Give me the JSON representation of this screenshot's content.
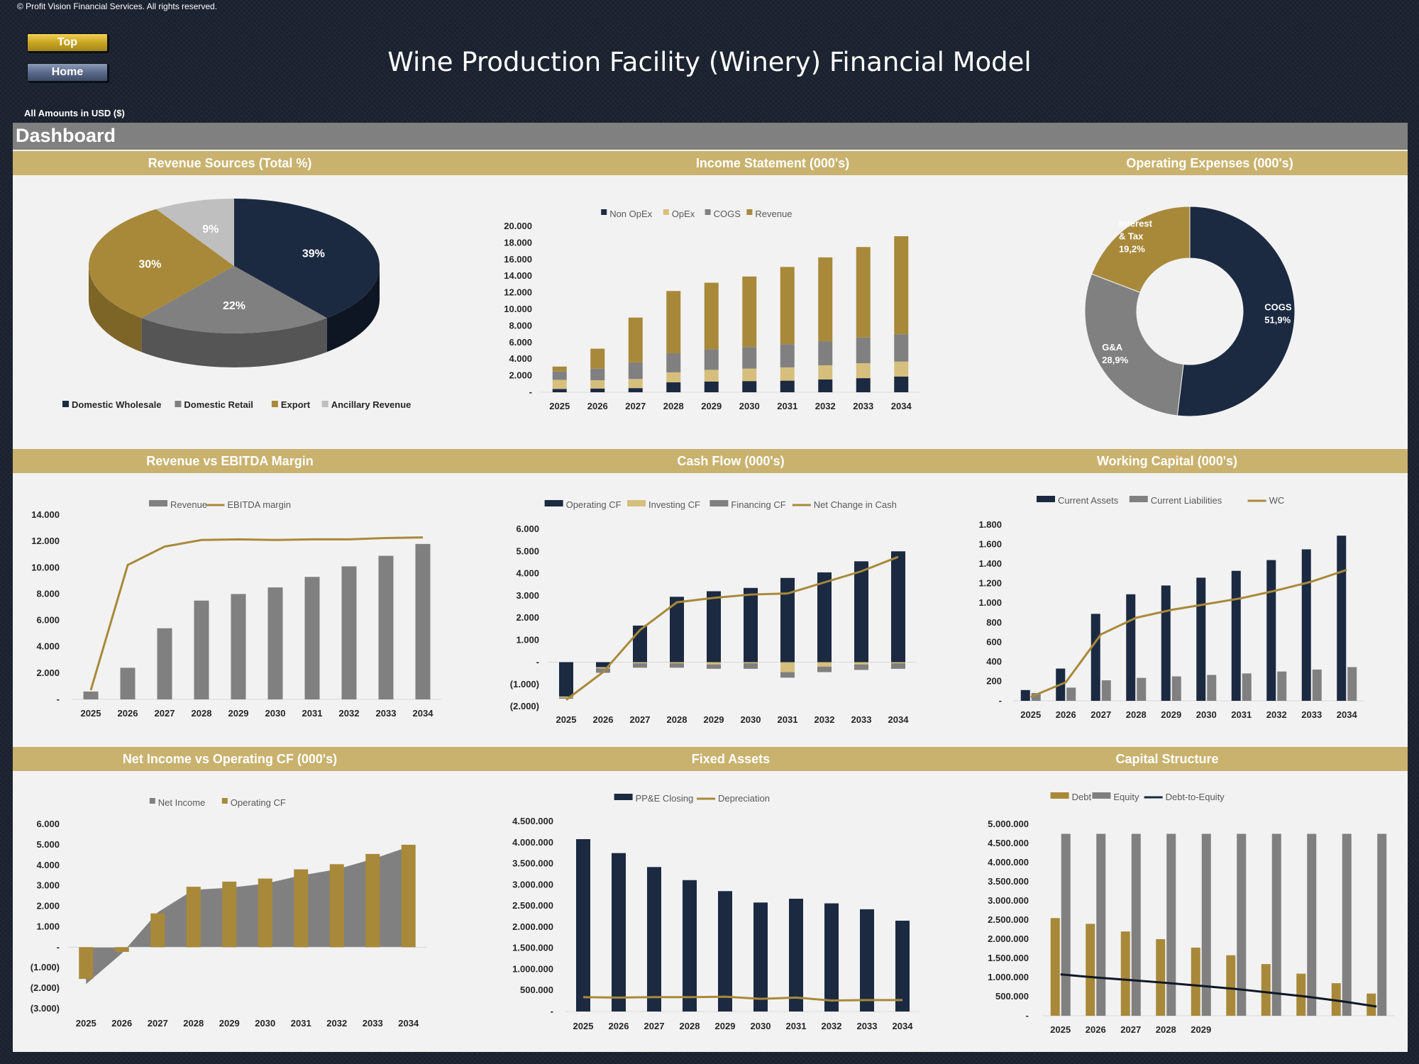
{
  "header": {
    "copyright": "© Profit Vision Financial Services. All rights reserved.",
    "top_button": "Top",
    "home_button": "Home",
    "title": "Wine Production Facility (Winery) Financial Model",
    "amounts_note": "All Amounts in  USD ($)",
    "dashboard_label": "Dashboard"
  },
  "colors": {
    "navy": "#1b2a41",
    "gold": "#a8893a",
    "light_gold": "#d6bf7d",
    "grey": "#808080",
    "light_grey": "#bfbfbf",
    "band": "#c9b26e"
  },
  "chart_data": [
    {
      "id": "revenue_sources",
      "type": "pie",
      "title": "Revenue Sources (Total %)",
      "categories": [
        "Domestic Wholesale",
        "Domestic Retail",
        "Export",
        "Ancillary Revenue"
      ],
      "values": [
        39,
        22,
        30,
        9
      ],
      "data_labels": [
        "39%",
        "22%",
        "30%",
        "9%"
      ],
      "legend": "bottom"
    },
    {
      "id": "income_statement",
      "type": "bar",
      "stacked": true,
      "title": "Income Statement (000's)",
      "categories": [
        "2025",
        "2026",
        "2027",
        "2028",
        "2029",
        "2030",
        "2031",
        "2032",
        "2033",
        "2034"
      ],
      "series": [
        {
          "name": "Non OpEx",
          "values": [
            400,
            450,
            500,
            1200,
            1300,
            1350,
            1400,
            1550,
            1700,
            1900
          ]
        },
        {
          "name": "OpEx",
          "values": [
            1100,
            1000,
            1100,
            1200,
            1400,
            1500,
            1600,
            1700,
            1800,
            1800
          ]
        },
        {
          "name": "COGS",
          "values": [
            1000,
            1400,
            2000,
            2300,
            2500,
            2600,
            2800,
            2900,
            3100,
            3300
          ]
        },
        {
          "name": "Revenue",
          "values": [
            600,
            2400,
            5400,
            7500,
            8000,
            8500,
            9300,
            10100,
            10900,
            11800
          ]
        }
      ],
      "yticks": [
        "20.000",
        "18.000",
        "16.000",
        "14.000",
        "12.000",
        "10.000",
        "8.000",
        "6.000",
        "4.000",
        "2.000",
        "-"
      ],
      "ylim": [
        0,
        20000
      ],
      "legend": "top"
    },
    {
      "id": "operating_expenses",
      "type": "pie",
      "donut": true,
      "title": "Operating Expenses (000's)",
      "categories": [
        "COGS",
        "G&A",
        "Interest & Tax"
      ],
      "values": [
        51.9,
        28.9,
        19.2
      ],
      "data_labels": [
        "COGS\n51,9%",
        "G&A\n28,9%",
        "Interest\n& Tax\n19,2%"
      ]
    },
    {
      "id": "revenue_vs_ebitda",
      "type": "bar",
      "title": "Revenue vs EBITDA Margin",
      "categories": [
        "2025",
        "2026",
        "2027",
        "2028",
        "2029",
        "2030",
        "2031",
        "2032",
        "2033",
        "2034"
      ],
      "series": [
        {
          "name": "Revenue",
          "values": [
            600,
            2400,
            5400,
            7500,
            8000,
            8500,
            9300,
            10100,
            10900,
            11800
          ]
        },
        {
          "name": "EBITDA margin",
          "type": "line",
          "values": [
            700,
            10200,
            11600,
            12100,
            12150,
            12100,
            12150,
            12150,
            12250,
            12300
          ]
        }
      ],
      "yticks": [
        "14.000",
        "12.000",
        "10.000",
        "8.000",
        "6.000",
        "4.000",
        "2.000",
        "-"
      ],
      "ylim": [
        0,
        14000
      ],
      "legend": "top"
    },
    {
      "id": "cash_flow",
      "type": "bar",
      "stacked": true,
      "title": "Cash Flow (000's)",
      "categories": [
        "2025",
        "2026",
        "2027",
        "2028",
        "2029",
        "2030",
        "2031",
        "2032",
        "2033",
        "2034"
      ],
      "series": [
        {
          "name": "Operating CF",
          "values": [
            -1550,
            -230,
            1650,
            2950,
            3200,
            3350,
            3800,
            4050,
            4550,
            5000
          ]
        },
        {
          "name": "Investing CF",
          "values": [
            -50,
            -50,
            -50,
            -50,
            -100,
            -50,
            -450,
            -200,
            -100,
            -50
          ]
        },
        {
          "name": "Financing CF",
          "values": [
            -50,
            -200,
            -200,
            -200,
            -200,
            -250,
            -250,
            -250,
            -250,
            -250
          ]
        },
        {
          "name": "Net Change in Cash",
          "type": "line",
          "values": [
            -1700,
            -450,
            1450,
            2700,
            2900,
            3050,
            3100,
            3600,
            4100,
            4750
          ]
        }
      ],
      "yticks": [
        "6.000",
        "5.000",
        "4.000",
        "3.000",
        "2.000",
        "1.000",
        "-",
        "(1.000)",
        "(2.000)"
      ],
      "ylim": [
        -2000,
        6000
      ],
      "legend": "top"
    },
    {
      "id": "working_capital",
      "type": "bar",
      "title": "Working Capital (000's)",
      "categories": [
        "2025",
        "2026",
        "2027",
        "2028",
        "2029",
        "2030",
        "2031",
        "2032",
        "2033",
        "2034"
      ],
      "series": [
        {
          "name": "Current Assets",
          "values": [
            110,
            330,
            890,
            1090,
            1180,
            1260,
            1330,
            1440,
            1550,
            1690
          ]
        },
        {
          "name": "Current Liabilities",
          "values": [
            80,
            135,
            210,
            235,
            250,
            265,
            280,
            300,
            320,
            345
          ]
        },
        {
          "name": "WC",
          "type": "line",
          "values": [
            40,
            190,
            680,
            850,
            930,
            990,
            1050,
            1130,
            1220,
            1340
          ]
        }
      ],
      "yticks": [
        "1.800",
        "1.600",
        "1.400",
        "1.200",
        "1.000",
        "800",
        "600",
        "400",
        "200",
        "-"
      ],
      "ylim": [
        0,
        1800
      ],
      "legend": "top"
    },
    {
      "id": "net_income_vs_ocf",
      "type": "bar",
      "title": "Net Income vs Operating CF (000's)",
      "categories": [
        "2025",
        "2026",
        "2027",
        "2028",
        "2029",
        "2030",
        "2031",
        "2032",
        "2033",
        "2034"
      ],
      "series": [
        {
          "name": "Net Income",
          "type": "area",
          "values": [
            -1800,
            -300,
            1700,
            2800,
            2900,
            3100,
            3500,
            3800,
            4300,
            4900
          ]
        },
        {
          "name": "Operating CF",
          "values": [
            -1550,
            -230,
            1650,
            2950,
            3200,
            3350,
            3800,
            4050,
            4550,
            5000
          ]
        }
      ],
      "yticks": [
        "6.000",
        "5.000",
        "4.000",
        "3.000",
        "2.000",
        "1.000",
        "-",
        "(1.000)",
        "(2.000)",
        "(3.000)"
      ],
      "ylim": [
        -3000,
        6000
      ],
      "legend": "top"
    },
    {
      "id": "fixed_assets",
      "type": "bar",
      "title": "Fixed Assets",
      "categories": [
        "2025",
        "2026",
        "2027",
        "2028",
        "2029",
        "2030",
        "2031",
        "2032",
        "2033",
        "2034"
      ],
      "series": [
        {
          "name": "PP&E Closing",
          "values": [
            4080000,
            3750000,
            3420000,
            3110000,
            2850000,
            2580000,
            2670000,
            2560000,
            2420000,
            2150000
          ]
        },
        {
          "name": "Depreciation",
          "type": "line",
          "values": [
            340000,
            330000,
            340000,
            340000,
            350000,
            300000,
            330000,
            260000,
            270000,
            270000
          ]
        }
      ],
      "yticks": [
        "4.500.000",
        "4.000.000",
        "3.500.000",
        "3.000.000",
        "2.500.000",
        "2.000.000",
        "1.500.000",
        "1.000.000",
        "500.000",
        "-"
      ],
      "ylim": [
        0,
        4500000
      ],
      "legend": "top"
    },
    {
      "id": "capital_structure",
      "type": "bar",
      "title": "Capital Structure",
      "categories": [
        "2025",
        "2026",
        "2027",
        "2028",
        "2029",
        "",
        "",
        "",
        "",
        ""
      ],
      "series": [
        {
          "name": "Debt",
          "values": [
            2550000,
            2400000,
            2200000,
            2000000,
            1780000,
            1580000,
            1350000,
            1100000,
            850000,
            580000
          ]
        },
        {
          "name": "Equity",
          "values": [
            4750000,
            4750000,
            4750000,
            4750000,
            4750000,
            4750000,
            4750000,
            4750000,
            4750000,
            4750000
          ]
        },
        {
          "name": "Debt-to-Equity",
          "type": "line",
          "values": [
            1080000,
            1000000,
            930000,
            860000,
            780000,
            700000,
            600000,
            500000,
            380000,
            240000
          ]
        }
      ],
      "yticks": [
        "5.000.000",
        "4.500.000",
        "4.000.000",
        "3.500.000",
        "3.000.000",
        "2.500.000",
        "2.000.000",
        "1.500.000",
        "1.000.000",
        "500.000",
        "-"
      ],
      "ylim": [
        0,
        5000000
      ],
      "legend": "top"
    }
  ]
}
